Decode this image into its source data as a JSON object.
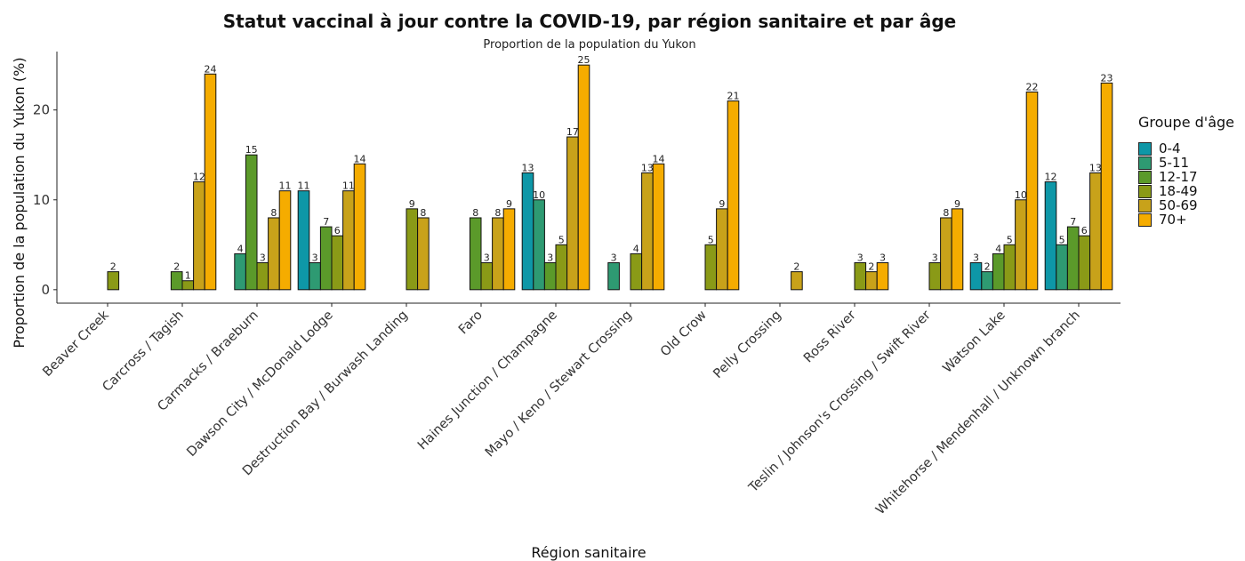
{
  "chart_data": {
    "type": "bar",
    "title": "Statut vaccinal à jour contre la COVID-19, par région sanitaire et par âge",
    "subtitle": "Proportion de la population du Yukon",
    "xlabel": "Région sanitaire",
    "ylabel": "Proportion de la population du Yukon (%)",
    "ylim": [
      -1.5,
      26.5
    ],
    "yticks": [
      0,
      10,
      20
    ],
    "grid": false,
    "legend_title": "Groupe d'âge",
    "legend_position": "right",
    "categories": [
      "Beaver Creek",
      "Carcross / Tagish",
      "Carmacks / Braeburn",
      "Dawson City / McDonald Lodge",
      "Destruction Bay / Burwash Landing",
      "Faro",
      "Haines Junction / Champagne",
      "Mayo / Keno / Stewart Crossing",
      "Old Crow",
      "Pelly Crossing",
      "Ross River",
      "Teslin / Johnson's Crossing / Swift River",
      "Watson Lake",
      "Whitehorse / Mendenhall / Unknown branch"
    ],
    "series": [
      {
        "name": "0-4",
        "color": "#0e97a7",
        "values": [
          null,
          null,
          null,
          11,
          null,
          null,
          13,
          null,
          null,
          null,
          null,
          null,
          3,
          12
        ]
      },
      {
        "name": "5-11",
        "color": "#2e9a72",
        "values": [
          null,
          null,
          4,
          3,
          null,
          null,
          10,
          3,
          null,
          null,
          null,
          null,
          2,
          5
        ]
      },
      {
        "name": "12-17",
        "color": "#5b9a2a",
        "values": [
          null,
          2,
          15,
          7,
          null,
          8,
          3,
          null,
          null,
          null,
          null,
          null,
          4,
          7
        ]
      },
      {
        "name": "18-49",
        "color": "#8a9a17",
        "values": [
          2,
          1,
          3,
          6,
          9,
          3,
          5,
          4,
          5,
          null,
          3,
          3,
          5,
          6
        ]
      },
      {
        "name": "50-69",
        "color": "#c8a21a",
        "values": [
          null,
          12,
          8,
          11,
          8,
          8,
          17,
          13,
          9,
          2,
          2,
          8,
          10,
          13
        ]
      },
      {
        "name": "70+",
        "color": "#f5ac00",
        "values": [
          null,
          24,
          11,
          14,
          null,
          9,
          25,
          14,
          21,
          null,
          3,
          9,
          22,
          23
        ]
      }
    ]
  }
}
